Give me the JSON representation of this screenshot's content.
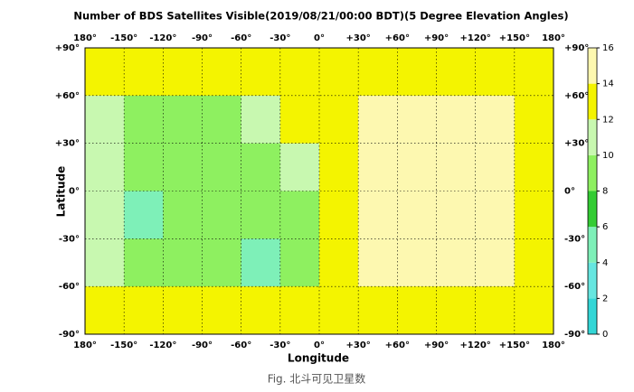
{
  "chart_data": {
    "type": "heatmap",
    "title": "Number of BDS Satellites Visible(2019/08/21/00:00 BDT)(5 Degree Elevation Angles)",
    "xlabel": "Longitude",
    "ylabel": "Latitude",
    "x": [
      -165,
      -135,
      -105,
      -75,
      -45,
      -15,
      15,
      45,
      75,
      105,
      135,
      165
    ],
    "y": [
      75,
      45,
      15,
      -15,
      -45,
      -75
    ],
    "values": [
      [
        13,
        13,
        13,
        13,
        13,
        13,
        13,
        13,
        13,
        13,
        13,
        13
      ],
      [
        11,
        9,
        9,
        9,
        11,
        13,
        13,
        15,
        15,
        15,
        15,
        13
      ],
      [
        11,
        9,
        9,
        9,
        9,
        11,
        13,
        15,
        15,
        15,
        15,
        13
      ],
      [
        11,
        5,
        9,
        9,
        9,
        9,
        13,
        15,
        15,
        15,
        15,
        13
      ],
      [
        11,
        9,
        9,
        9,
        5,
        9,
        13,
        15,
        15,
        15,
        15,
        13
      ],
      [
        13,
        13,
        13,
        13,
        13,
        13,
        13,
        13,
        13,
        13,
        13,
        13
      ]
    ],
    "xlim": [
      -180,
      180
    ],
    "ylim": [
      -90,
      90
    ],
    "xticks": [
      {
        "value": -180,
        "label": "180°"
      },
      {
        "value": -150,
        "label": "-150°"
      },
      {
        "value": -120,
        "label": "-120°"
      },
      {
        "value": -90,
        "label": "-90°"
      },
      {
        "value": -60,
        "label": "-60°"
      },
      {
        "value": -30,
        "label": "-30°"
      },
      {
        "value": 0,
        "label": "0°"
      },
      {
        "value": 30,
        "label": "+30°"
      },
      {
        "value": 60,
        "label": "+60°"
      },
      {
        "value": 90,
        "label": "+90°"
      },
      {
        "value": 120,
        "label": "+120°"
      },
      {
        "value": 150,
        "label": "+150°"
      },
      {
        "value": 180,
        "label": "180°"
      }
    ],
    "yticks": [
      {
        "value": -90,
        "label": "-90°"
      },
      {
        "value": -60,
        "label": "-60°"
      },
      {
        "value": -30,
        "label": "-30°"
      },
      {
        "value": 0,
        "label": "0°"
      },
      {
        "value": 30,
        "label": "+30°"
      },
      {
        "value": 60,
        "label": "+60°"
      },
      {
        "value": 90,
        "label": "+90°"
      }
    ],
    "grid": true,
    "colorbar": {
      "ticks": [
        0,
        2,
        4,
        6,
        8,
        10,
        12,
        14,
        16
      ],
      "colors": [
        "#33d6d6",
        "#66e6e0",
        "#7ef0b8",
        "#33cc33",
        "#8ef060",
        "#c8f8b0",
        "#f4f400",
        "#fdf8b0"
      ]
    }
  },
  "caption": "Fig. 北斗可见卫星数"
}
